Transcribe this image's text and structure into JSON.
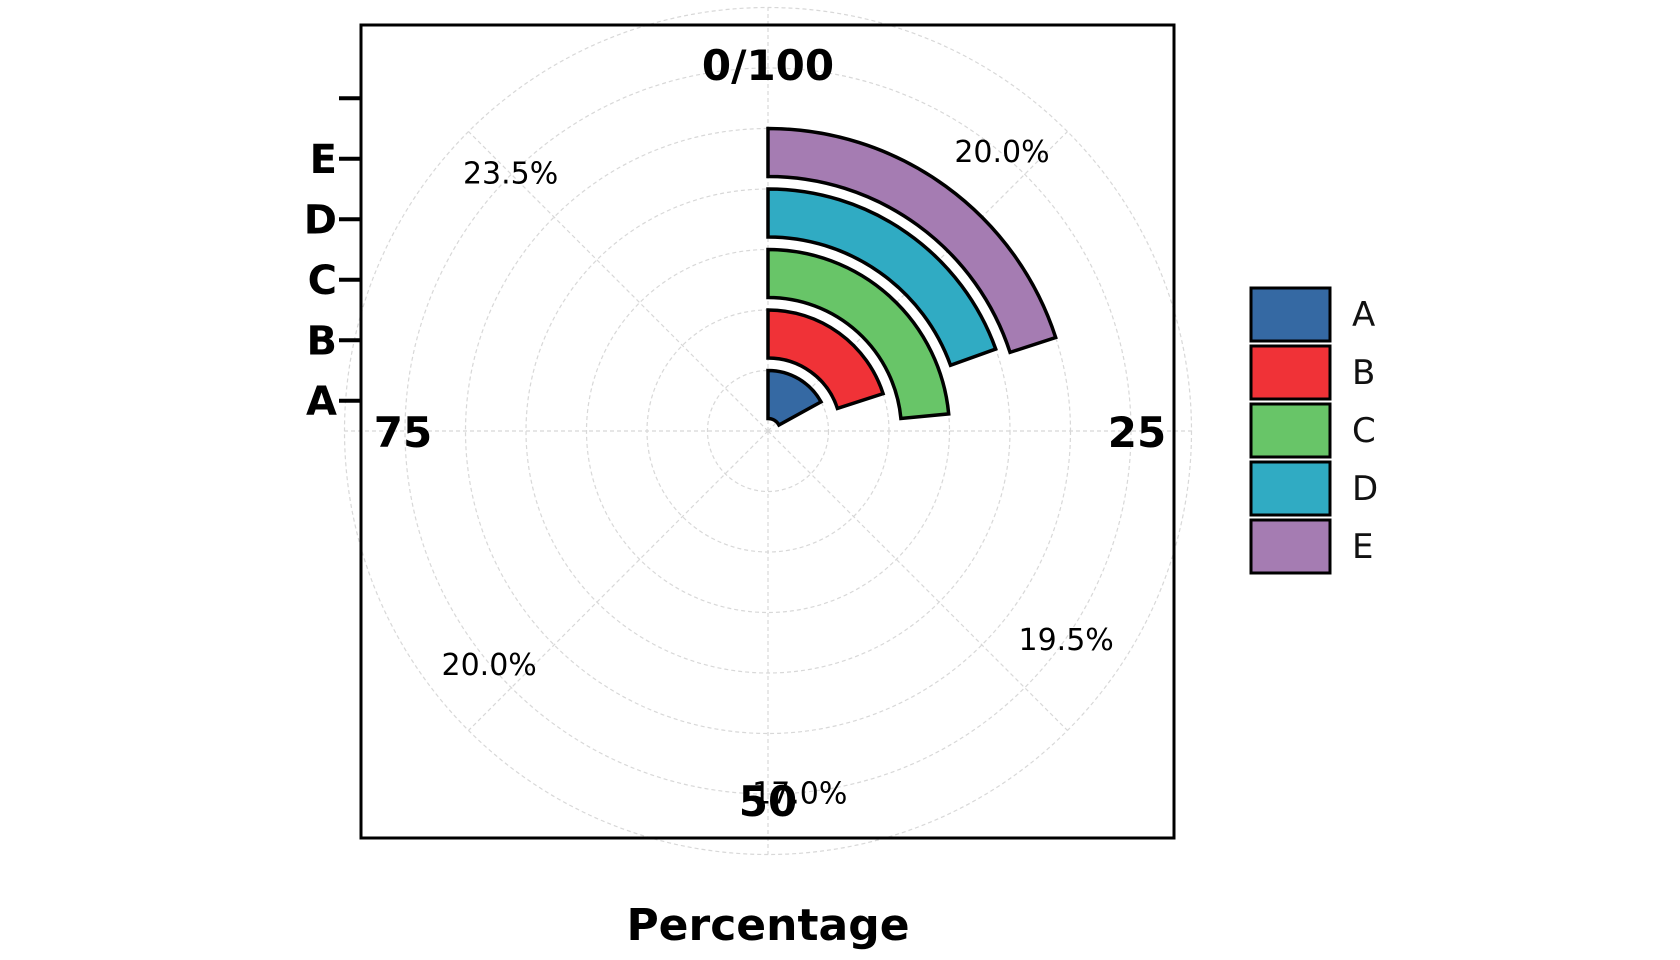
{
  "chart_data": {
    "type": "bar",
    "subtype": "polar radial bar",
    "title": "",
    "xlabel": "Percentage",
    "ylabel": "",
    "categories": [
      "A",
      "B",
      "C",
      "D",
      "E"
    ],
    "values": [
      17.0,
      20.0,
      23.5,
      19.5,
      20.0
    ],
    "colors": [
      "#3569a3",
      "#f03237",
      "#68c568",
      "#30abc3",
      "#a57cb2"
    ],
    "direction_labels": [
      "0/100",
      "25",
      "50",
      "75"
    ],
    "percentage_labels": [
      {
        "text": "23.5%",
        "category": "C",
        "angle_deg": -45
      },
      {
        "text": "20.0%",
        "category": "B",
        "angle_deg": 40
      },
      {
        "text": "19.5%",
        "category": "D",
        "angle_deg": 125
      },
      {
        "text": "17.0%",
        "category": "A",
        "angle_deg": 175
      },
      {
        "text": "20.0%",
        "category": "E",
        "angle_deg": 230
      }
    ],
    "angular_range": [
      0,
      100
    ],
    "grid": true,
    "legend": {
      "placement": "right",
      "entries": [
        "A",
        "B",
        "C",
        "D",
        "E"
      ]
    }
  }
}
